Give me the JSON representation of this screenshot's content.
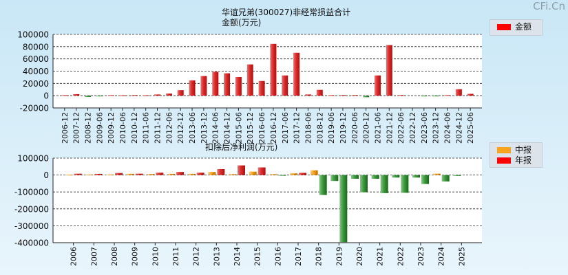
{
  "watermark": "CFi.Cn",
  "colors": {
    "positive": "#e03030",
    "negative": "#3f9a3f",
    "interim": "#f7a51e",
    "annual": "#ff0000",
    "legend_amount": "#ff0000"
  },
  "chart_data": [
    {
      "type": "bar",
      "title": "华谊兄弟(300027)非经常损益合计",
      "subtitle": "金额(万元)",
      "ylim": [
        -20000,
        100000
      ],
      "yticks": [
        "100000",
        "80000",
        "60000",
        "40000",
        "20000",
        "0",
        "-20000"
      ],
      "legend": {
        "label": "金额",
        "position": "top-right"
      },
      "categories": [
        "2006-12",
        "2007-12",
        "2008-12",
        "2009-06",
        "2009-12",
        "2010-06",
        "2010-12",
        "2011-06",
        "2011-12",
        "2012-06",
        "2012-12",
        "2013-06",
        "2013-12",
        "2014-06",
        "2014-12",
        "2015-06",
        "2015-12",
        "2016-06",
        "2016-12",
        "2017-06",
        "2017-12",
        "2018-06",
        "2018-12",
        "2019-06",
        "2019-12",
        "2020-06",
        "2020-12",
        "2021-06",
        "2021-12",
        "2022-06",
        "2022-12",
        "2023-06",
        "2023-12",
        "2024-06",
        "2024-12",
        "2025-06"
      ],
      "values": [
        800,
        2500,
        -2000,
        -800,
        800,
        500,
        1000,
        500,
        2000,
        3500,
        9000,
        25000,
        32000,
        39000,
        36500,
        30500,
        51000,
        24000,
        84500,
        33000,
        70000,
        2000,
        9500,
        800,
        1000,
        1000,
        -2500,
        33000,
        82500,
        1000,
        0,
        -300,
        -1000,
        800,
        10500,
        3000
      ]
    },
    {
      "type": "bar",
      "title": "扣除后净利润(万元)",
      "ylim": [
        -400000,
        100000
      ],
      "yticks": [
        "100000",
        "0",
        "-100000",
        "-200000",
        "-300000",
        "-400000"
      ],
      "legend": {
        "items": [
          "中报",
          "年报"
        ],
        "position": "top-right"
      },
      "categories": [
        "2006",
        "2007",
        "2008",
        "2009",
        "2010",
        "2011",
        "2012",
        "2013",
        "2014",
        "2015",
        "2016",
        "2017",
        "2018",
        "2019",
        "2020",
        "2021",
        "2022",
        "2023",
        "2024",
        "2025"
      ],
      "series": [
        {
          "name": "中报",
          "values": [
            2000,
            3000,
            3000,
            7000,
            6000,
            7000,
            7000,
            18000,
            5000,
            20000,
            5000,
            10000,
            28000,
            -35000,
            -22000,
            -22000,
            -15000,
            -15000,
            8000,
            -5000
          ]
        },
        {
          "name": "年报",
          "values": [
            8000,
            7000,
            12000,
            8000,
            14000,
            18000,
            14000,
            35000,
            57000,
            45000,
            -3000,
            13000,
            -118000,
            -397000,
            -102000,
            -107000,
            -105000,
            -53000,
            -38000,
            null
          ]
        }
      ]
    }
  ]
}
